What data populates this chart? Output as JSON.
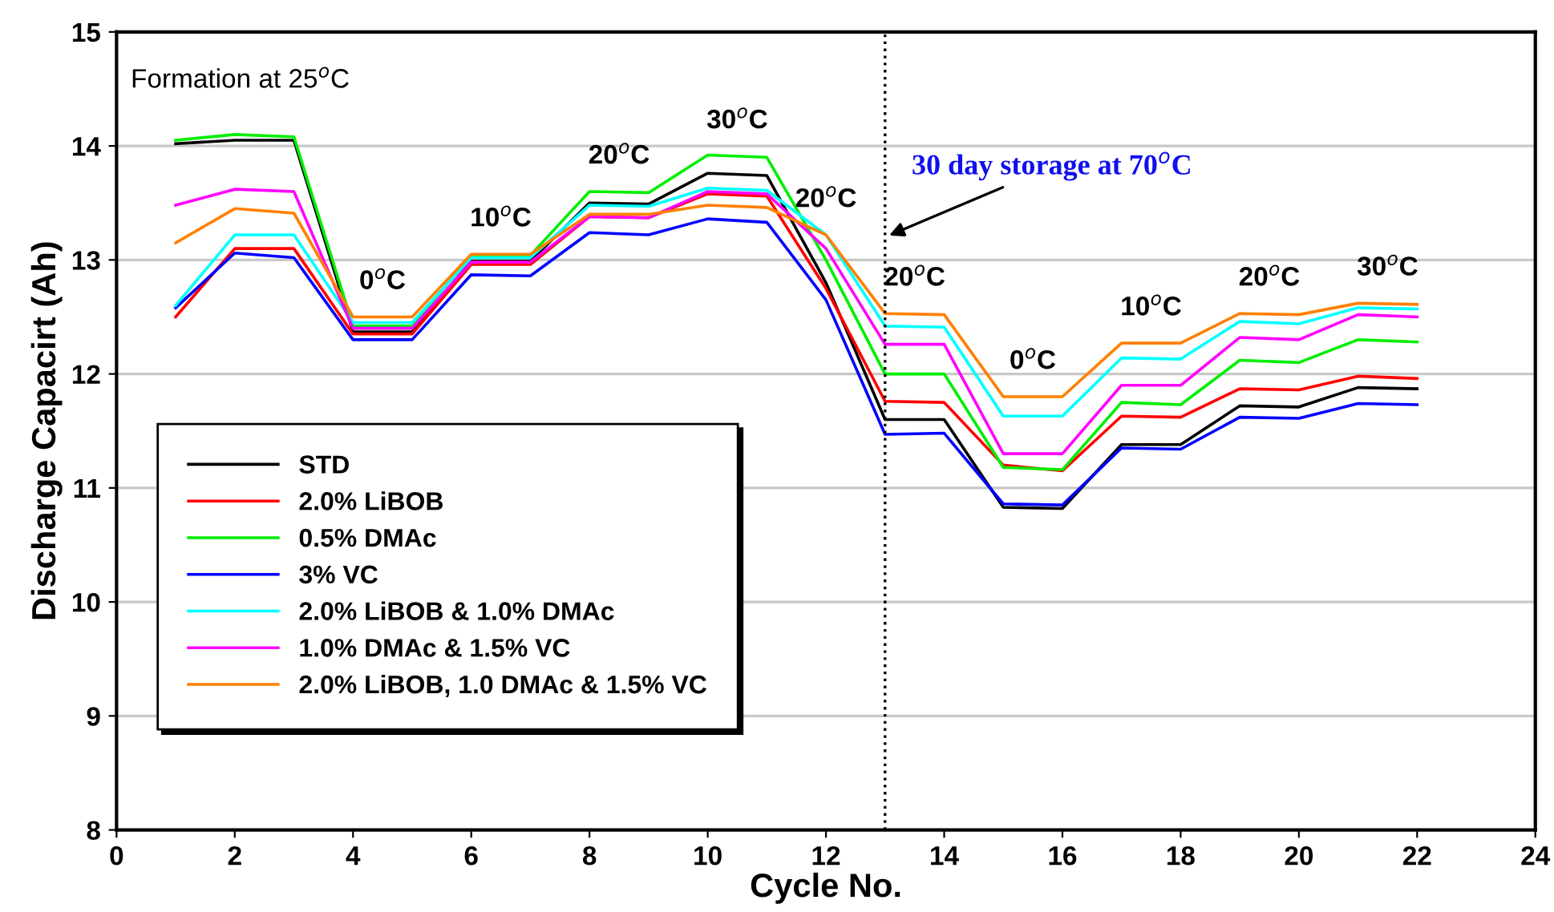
{
  "chart_data": {
    "type": "line",
    "xlabel": "Cycle No.",
    "ylabel": "Discharge Capacirt (Ah)",
    "x": [
      1,
      2,
      3,
      4,
      5,
      6,
      7,
      8,
      9,
      10,
      11,
      12,
      13,
      14,
      15,
      16,
      17,
      18,
      19,
      20,
      21,
      22
    ],
    "xlim": [
      0,
      24
    ],
    "xticks": [
      0,
      2,
      4,
      6,
      8,
      10,
      12,
      14,
      16,
      18,
      20,
      22,
      24
    ],
    "ylim": [
      8,
      15
    ],
    "yticks": [
      8,
      9,
      10,
      11,
      12,
      13,
      14,
      15
    ],
    "grid": "y",
    "legend": "lower left",
    "marker": "none",
    "line_style": "solid",
    "series": [
      {
        "name": "STD",
        "color": "#000000",
        "values": [
          14.02,
          14.05,
          14.05,
          12.37,
          12.37,
          12.99,
          12.99,
          13.5,
          13.49,
          13.76,
          13.74,
          12.8,
          11.6,
          11.6,
          10.83,
          10.82,
          11.38,
          11.38,
          11.72,
          11.71,
          11.88,
          11.87
        ]
      },
      {
        "name": "2.0% LiBOB",
        "color": "#ff0000",
        "values": [
          12.5,
          13.1,
          13.1,
          12.35,
          12.35,
          12.96,
          12.96,
          13.38,
          13.37,
          13.58,
          13.56,
          12.75,
          11.76,
          11.75,
          11.2,
          11.15,
          11.63,
          11.62,
          11.87,
          11.86,
          11.98,
          11.96
        ]
      },
      {
        "name": "0.5% DMAc",
        "color": "#00ee00",
        "values": [
          14.05,
          14.1,
          14.08,
          12.42,
          12.42,
          13.04,
          13.04,
          13.6,
          13.59,
          13.92,
          13.9,
          13.0,
          12.0,
          12.0,
          11.18,
          11.16,
          11.75,
          11.73,
          12.12,
          12.1,
          12.3,
          12.28
        ]
      },
      {
        "name": "3% VC",
        "color": "#0000ff",
        "values": [
          12.58,
          13.06,
          13.02,
          12.3,
          12.3,
          12.87,
          12.86,
          13.24,
          13.22,
          13.36,
          13.33,
          12.65,
          11.47,
          11.48,
          10.86,
          10.85,
          11.35,
          11.34,
          11.62,
          11.61,
          11.74,
          11.73
        ]
      },
      {
        "name": "2.0% LiBOB & 1.0% DMAc",
        "color": "#00ffff",
        "values": [
          12.6,
          13.22,
          13.22,
          12.45,
          12.45,
          13.02,
          13.02,
          13.48,
          13.47,
          13.63,
          13.61,
          13.22,
          12.42,
          12.41,
          11.63,
          11.63,
          12.14,
          12.13,
          12.46,
          12.44,
          12.58,
          12.57
        ]
      },
      {
        "name": "1.0% DMAc & 1.5% VC",
        "color": "#ff00ff",
        "values": [
          13.48,
          13.62,
          13.6,
          12.4,
          12.4,
          12.98,
          12.98,
          13.38,
          13.37,
          13.6,
          13.58,
          13.1,
          12.26,
          12.26,
          11.3,
          11.3,
          11.9,
          11.9,
          12.32,
          12.3,
          12.52,
          12.5
        ]
      },
      {
        "name": "2.0% LiBOB, 1.0 DMAc & 1.5% VC",
        "color": "#ff8000",
        "values": [
          13.15,
          13.45,
          13.41,
          12.5,
          12.5,
          13.05,
          13.05,
          13.4,
          13.4,
          13.48,
          13.46,
          13.22,
          12.53,
          12.52,
          11.8,
          11.8,
          12.27,
          12.27,
          12.53,
          12.52,
          12.62,
          12.61
        ]
      }
    ],
    "ref_lines": [
      {
        "axis": "x",
        "value": 13,
        "color": "#000000",
        "line_style": "dotted"
      }
    ],
    "annotations": [
      "Formation at 25$^{o}$C",
      {
        "text": "30 day storage at 70$^{o}$C",
        "x": 13,
        "y": 13.2
      },
      {
        "text": "0$^{o}$C",
        "x": 4.5,
        "y": 12.5
      },
      {
        "text": "10$^{o}$C",
        "x": 6.5,
        "y": 13.05
      },
      {
        "text": "20$^{o}$C",
        "x": 8.5,
        "y": 13.6
      },
      {
        "text": "30$^{o}$C",
        "x": 10.5,
        "y": 13.91
      },
      {
        "text": "20$^{o}$C",
        "x": 12,
        "y": 13.22
      },
      {
        "text": "20$^{o}$C",
        "x": 13.5,
        "y": 12.53
      },
      {
        "text": "0$^{o}$C",
        "x": 15.5,
        "y": 11.8
      },
      {
        "text": "10$^{o}$C",
        "x": 17.5,
        "y": 12.27
      },
      {
        "text": "20$^{o}$C",
        "x": 19.5,
        "y": 12.53
      },
      {
        "text": "30$^{o}$C",
        "x": 21.5,
        "y": 12.62
      }
    ]
  }
}
